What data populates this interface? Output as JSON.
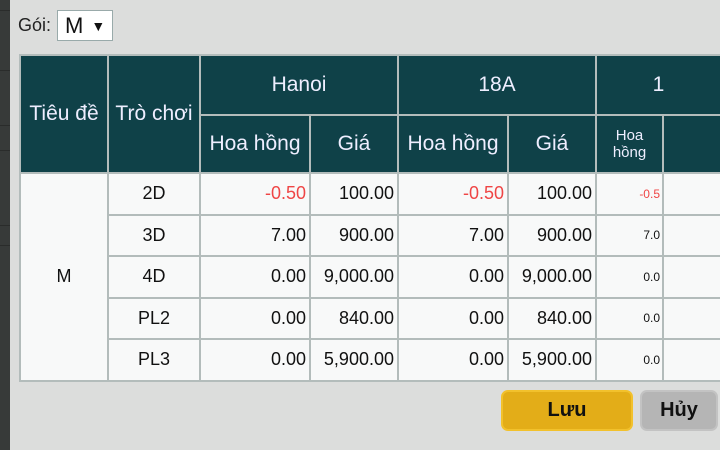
{
  "filter": {
    "label": "Gói:",
    "value": "M"
  },
  "table": {
    "headers": {
      "title": "Tiêu đề",
      "game": "Trò chơi",
      "groups": [
        "Hanoi",
        "18A",
        "1"
      ],
      "commission": "Hoa hồng",
      "price": "Giá"
    },
    "group_label": "M",
    "rows": [
      {
        "game": "2D",
        "values": [
          "-0.50",
          "100.00",
          "-0.50",
          "100.00",
          "-0.5"
        ]
      },
      {
        "game": "3D",
        "values": [
          "7.00",
          "900.00",
          "7.00",
          "900.00",
          "7.0"
        ]
      },
      {
        "game": "4D",
        "values": [
          "0.00",
          "9,000.00",
          "0.00",
          "9,000.00",
          "0.0"
        ]
      },
      {
        "game": "PL2",
        "values": [
          "0.00",
          "840.00",
          "0.00",
          "840.00",
          "0.0"
        ]
      },
      {
        "game": "PL3",
        "values": [
          "0.00",
          "5,900.00",
          "0.00",
          "5,900.00",
          "0.0"
        ]
      }
    ]
  },
  "buttons": {
    "save": "Lưu",
    "cancel": "Hủy"
  },
  "colors": {
    "header_bg": "#0f4148",
    "save_bg": "#e3ad18",
    "negative": "#ef4545"
  }
}
